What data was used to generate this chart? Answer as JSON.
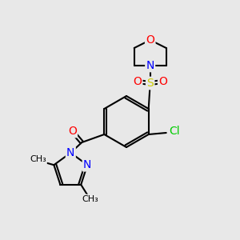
{
  "background_color": "#e8e8e8",
  "figsize": [
    3.0,
    3.0
  ],
  "dpi": 100,
  "bond_color": "#000000",
  "bond_width": 1.5,
  "atom_colors": {
    "O": "#ff0000",
    "N": "#0000ff",
    "S": "#cccc00",
    "Cl": "#00cc00",
    "C": "#000000"
  },
  "font_size": 9
}
